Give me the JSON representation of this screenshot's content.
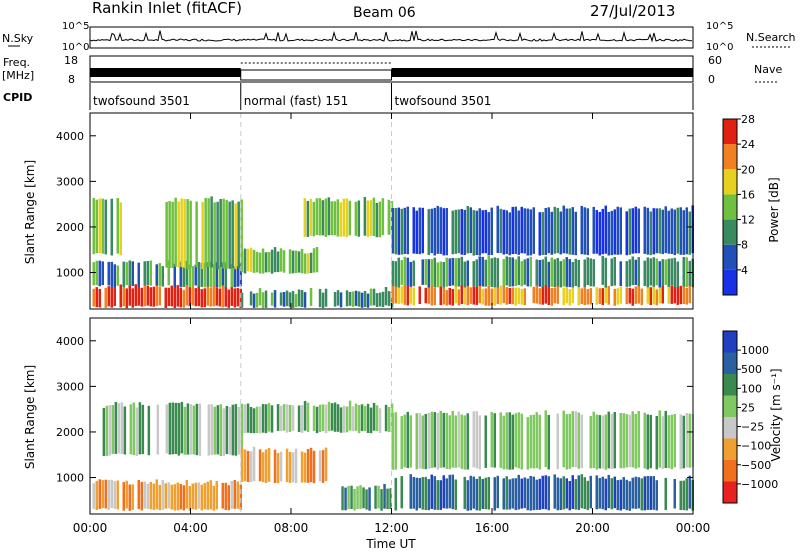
{
  "header": {
    "station": "Rankin Inlet (fitACF)",
    "beam": "Beam 06",
    "date": "27/Jul/2013"
  },
  "strip_labels": {
    "nsky": "N.Sky",
    "nsearch": "N.Search",
    "freq_top": "Freq.",
    "freq_unit": "[MHz]",
    "nave": "Nave",
    "cpid": "CPID",
    "nsky_tick_hi": "10^5",
    "nsky_tick_lo": "10^0",
    "nsearch_tick_hi": "10^5",
    "nsearch_tick_lo": "10^0",
    "freq_tick_hi": "18",
    "freq_tick_lo": "8",
    "nave_tick_hi": "60",
    "nave_tick_lo": "0"
  },
  "cpid_segments": [
    {
      "label": "twofsound 3501",
      "start_h": 0,
      "end_h": 6.0
    },
    {
      "label": "normal (fast) 151",
      "start_h": 6.0,
      "end_h": 12.0
    },
    {
      "label": "twofsound 3501",
      "start_h": 12.0,
      "end_h": 24.0
    }
  ],
  "chart_data": [
    {
      "type": "heatmap",
      "name": "power",
      "ylabel": "Slant Range [km]",
      "xlim": [
        0,
        24
      ],
      "ylim": [
        200,
        4500
      ],
      "yticks": [
        1000,
        2000,
        3000,
        4000
      ],
      "colorbar": {
        "label": "Power [dB]",
        "ticks": [
          "4",
          "8",
          "12",
          "16",
          "20",
          "24",
          "28"
        ],
        "colors": [
          "#1830e8",
          "#2050b8",
          "#3a8a60",
          "#70c040",
          "#e8d020",
          "#f08020",
          "#e02010"
        ]
      },
      "regions": [
        {
          "x0": 0.1,
          "x1": 6.0,
          "r0": 250,
          "r1": 700,
          "level": 6
        },
        {
          "x0": 0.1,
          "x1": 6.0,
          "r0": 700,
          "r1": 1200,
          "level": 2
        },
        {
          "x0": 0.1,
          "x1": 1.2,
          "r0": 1400,
          "r1": 2600,
          "level": 3
        },
        {
          "x0": 3.0,
          "x1": 6.0,
          "r0": 1100,
          "r1": 2600,
          "level": 3
        },
        {
          "x0": 6.0,
          "x1": 12.0,
          "r0": 250,
          "r1": 600,
          "level": 2
        },
        {
          "x0": 6.0,
          "x1": 9.0,
          "r0": 1000,
          "r1": 1500,
          "level": 3
        },
        {
          "x0": 8.5,
          "x1": 12.0,
          "r0": 1800,
          "r1": 2600,
          "level": 3
        },
        {
          "x0": 12.0,
          "x1": 24.0,
          "r0": 300,
          "r1": 700,
          "level": 5
        },
        {
          "x0": 12.0,
          "x1": 24.0,
          "r0": 700,
          "r1": 1300,
          "level": 2
        },
        {
          "x0": 12.0,
          "x1": 24.0,
          "r0": 1400,
          "r1": 2400,
          "level": 1
        }
      ]
    },
    {
      "type": "heatmap",
      "name": "velocity",
      "xlabel": "Time UT",
      "ylabel": "Slant Range [km]",
      "xlim": [
        0,
        24
      ],
      "ylim": [
        200,
        4500
      ],
      "yticks": [
        1000,
        2000,
        3000,
        4000
      ],
      "xticks": [
        "00:00",
        "04:00",
        "08:00",
        "12:00",
        "16:00",
        "20:00",
        "00:00"
      ],
      "colorbar": {
        "label": "Velocity [m s⁻¹]",
        "ticks": [
          "1000",
          "500",
          "100",
          "25",
          "−25",
          "−100",
          "−500",
          "−1000"
        ],
        "colors": [
          "#2040c0",
          "#2a60a0",
          "#3a8a50",
          "#80c860",
          "#c8c8c8",
          "#f0a030",
          "#f07020",
          "#e82020"
        ]
      },
      "regions": [
        {
          "x0": 0.1,
          "x1": 6.0,
          "r0": 300,
          "r1": 900,
          "level": 2
        },
        {
          "x0": 0.5,
          "x1": 6.0,
          "r0": 1500,
          "r1": 2600,
          "level": 4
        },
        {
          "x0": 6.0,
          "x1": 9.5,
          "r0": 900,
          "r1": 1600,
          "level": 2
        },
        {
          "x0": 6.0,
          "x1": 12.0,
          "r0": 2000,
          "r1": 2600,
          "level": 4
        },
        {
          "x0": 10.0,
          "x1": 12.0,
          "r0": 300,
          "r1": 800,
          "level": 5
        },
        {
          "x0": 12.0,
          "x1": 24.0,
          "r0": 300,
          "r1": 1000,
          "level": 6
        },
        {
          "x0": 12.0,
          "x1": 24.0,
          "r0": 1200,
          "r1": 2400,
          "level": 4
        }
      ]
    }
  ],
  "colors": {
    "cpid_divider": "#cccccc"
  }
}
